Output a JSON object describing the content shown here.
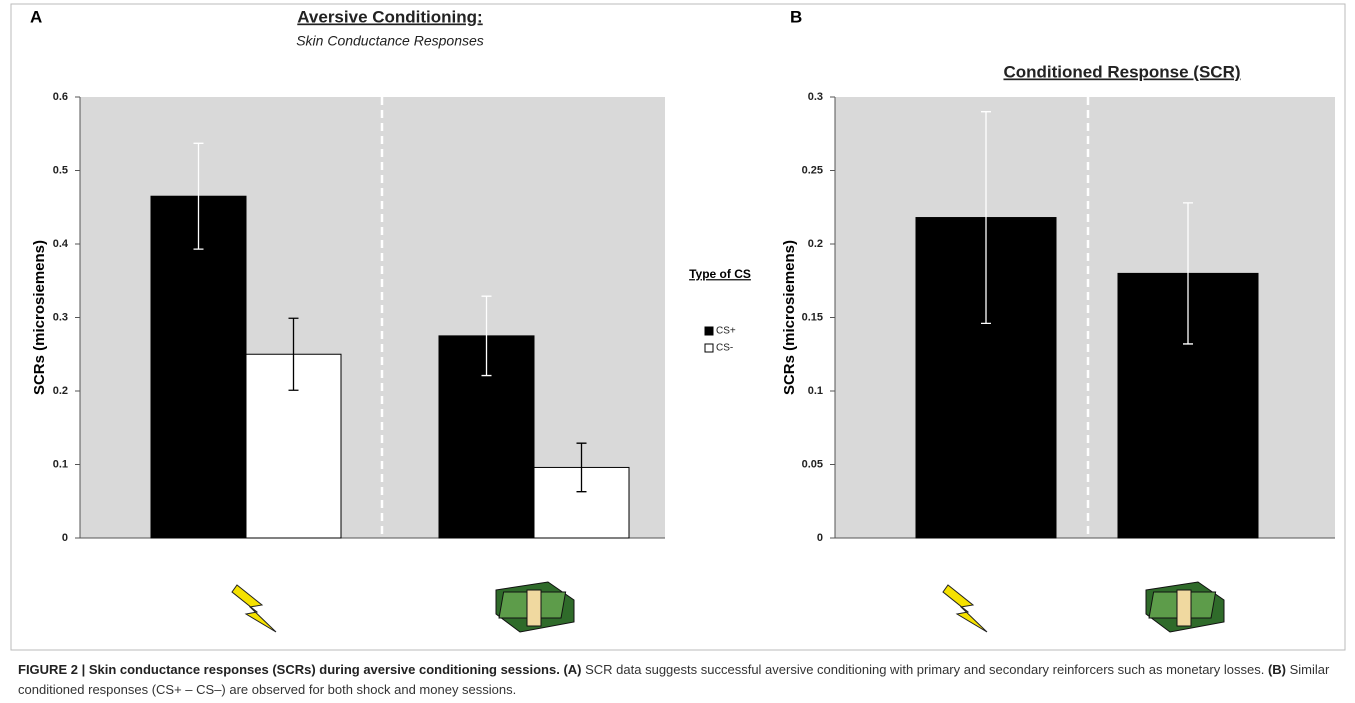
{
  "chart_data": [
    {
      "type": "bar",
      "panel": "A",
      "title": "Aversive Conditioning:",
      "subtitle": "Skin Conductance Responses",
      "y_label": "SCRs (microsiemens)",
      "ylim": [
        0,
        0.6
      ],
      "yticks": [
        0,
        0.1,
        0.2,
        0.3,
        0.4,
        0.5,
        0.6
      ],
      "legend_title": "Type of CS",
      "series": [
        {
          "name": "CS+",
          "color": "#000000",
          "values": [
            0.465,
            0.275
          ],
          "errors": [
            0.072,
            0.054
          ]
        },
        {
          "name": "CS-",
          "color": "#ffffff",
          "values": [
            0.25,
            0.096
          ],
          "errors": [
            0.049,
            0.033
          ]
        }
      ]
    },
    {
      "type": "bar",
      "panel": "B",
      "title": "Conditioned Response (SCR)",
      "y_label": "SCRs (microsiemens)",
      "ylim": [
        0,
        0.3
      ],
      "yticks": [
        0,
        0.05,
        0.1,
        0.15,
        0.2,
        0.25,
        0.3
      ],
      "series": [
        {
          "color": "#000000",
          "values": [
            0.218,
            0.18
          ],
          "errors": [
            0.072,
            0.048
          ]
        }
      ]
    }
  ],
  "caption": {
    "heading": "FIGURE 2 | Skin conductance responses (SCRs) during aversive conditioning sessions.",
    "a_label": "(A)",
    "a_text": "SCR data suggests successful aversive conditioning with primary and secondary reinforcers such as monetary losses.",
    "b_label": "(B)",
    "b_text": "Similar conditioned responses (CS+ – CS–) are observed for both shock and money sessions."
  }
}
